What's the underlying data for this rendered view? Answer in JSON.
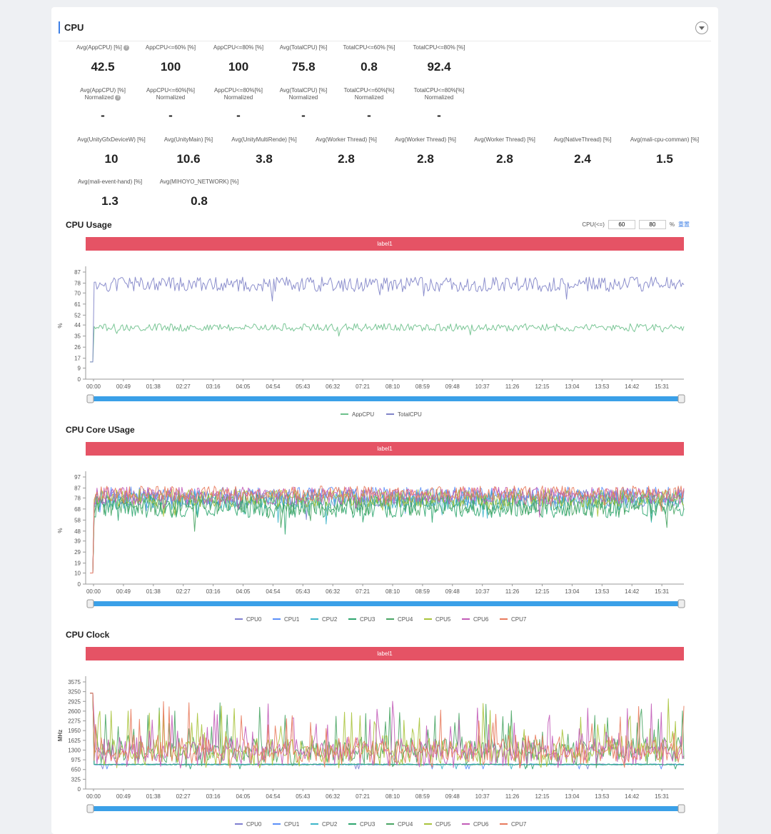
{
  "header": {
    "title": "CPU"
  },
  "stats": {
    "row1": [
      {
        "label": "Avg(AppCPU) [%]",
        "value": "42.5",
        "info": true
      },
      {
        "label": "AppCPU<=60% [%]",
        "value": "100"
      },
      {
        "label": "AppCPU<=80% [%]",
        "value": "100"
      },
      {
        "label": "Avg(TotalCPU) [%]",
        "value": "75.8"
      },
      {
        "label": "TotalCPU<=60% [%]",
        "value": "0.8"
      },
      {
        "label": "TotalCPU<=80% [%]",
        "value": "92.4"
      }
    ],
    "row2": [
      {
        "label": "Avg(AppCPU) [%]",
        "label2": "Normalized",
        "value": "-",
        "info": true
      },
      {
        "label": "AppCPU<=60%[%]",
        "label2": "Normalized",
        "value": "-"
      },
      {
        "label": "AppCPU<=80%[%]",
        "label2": "Normalized",
        "value": "-"
      },
      {
        "label": "Avg(TotalCPU) [%]",
        "label2": "Normalized",
        "value": "-"
      },
      {
        "label": "TotalCPU<=60%[%]",
        "label2": "Normalized",
        "value": "-"
      },
      {
        "label": "TotalCPU<=80%[%]",
        "label2": "Normalized",
        "value": "-"
      }
    ],
    "row3": [
      {
        "label": "Avg(UnityGfxDeviceW) [%]",
        "value": "10"
      },
      {
        "label": "Avg(UnityMain) [%]",
        "value": "10.6"
      },
      {
        "label": "Avg(UnityMultiRende) [%]",
        "value": "3.8"
      },
      {
        "label": "Avg(Worker Thread) [%]",
        "value": "2.8"
      },
      {
        "label": "Avg(Worker Thread) [%]",
        "value": "2.8"
      },
      {
        "label": "Avg(Worker Thread) [%]",
        "value": "2.8"
      },
      {
        "label": "Avg(NativeThread) [%]",
        "value": "2.4"
      },
      {
        "label": "Avg(mali-cpu-comman) [%]",
        "value": "1.5"
      }
    ],
    "row4": [
      {
        "label": "Avg(mali-event-hand) [%]",
        "value": "1.3"
      },
      {
        "label": "Avg(MIHOYO_NETWORK) [%]",
        "value": "0.8"
      }
    ]
  },
  "threshold": {
    "label": "CPU(<=)",
    "low": "60",
    "high": "80",
    "unit": "%",
    "reset": "重置"
  },
  "colors": {
    "label_bar": "#e55365",
    "slider": "#3aa0e8",
    "accent": "#3d7fe6",
    "AppCPU": "#6cc08b",
    "TotalCPU": "#8083c8",
    "CPU0": "#7f7fd0",
    "CPU1": "#5b8ff9",
    "CPU2": "#3cb5c9",
    "CPU3": "#2ea66f",
    "CPU4": "#4aa564",
    "CPU5": "#a9c33b",
    "CPU6": "#c25cb8",
    "CPU7": "#e87b5d"
  },
  "chart_data": [
    {
      "type": "line",
      "title": "CPU Usage",
      "band_label": "label1",
      "ylabel": "%",
      "y_ticks": [
        0,
        9,
        17,
        26,
        35,
        44,
        52,
        61,
        70,
        78,
        87
      ],
      "ylim": [
        0,
        87
      ],
      "x_ticks": [
        "00:00",
        "00:49",
        "01:38",
        "02:27",
        "03:16",
        "04:05",
        "04:54",
        "05:43",
        "06:32",
        "07:21",
        "08:10",
        "08:59",
        "09:48",
        "10:37",
        "11:26",
        "12:15",
        "13:04",
        "13:53",
        "14:42",
        "15:31"
      ],
      "legend": [
        "AppCPU",
        "TotalCPU"
      ],
      "legend_position": "bottom",
      "series": [
        {
          "name": "AppCPU",
          "pattern": "steady",
          "start": 14,
          "typical": 42,
          "spread": 3
        },
        {
          "name": "TotalCPU",
          "pattern": "steady",
          "start": 14,
          "typical": 77,
          "spread": 6
        }
      ]
    },
    {
      "type": "line",
      "title": "CPU Core USage",
      "band_label": "label1",
      "ylabel": "%",
      "y_ticks": [
        0,
        10,
        19,
        29,
        39,
        48,
        58,
        68,
        78,
        87,
        97
      ],
      "ylim": [
        0,
        97
      ],
      "x_ticks": [
        "00:00",
        "00:49",
        "01:38",
        "02:27",
        "03:16",
        "04:05",
        "04:54",
        "05:43",
        "06:32",
        "07:21",
        "08:10",
        "08:59",
        "09:48",
        "10:37",
        "11:26",
        "12:15",
        "13:04",
        "13:53",
        "14:42",
        "15:31"
      ],
      "legend": [
        "CPU0",
        "CPU1",
        "CPU2",
        "CPU3",
        "CPU4",
        "CPU5",
        "CPU6",
        "CPU7"
      ],
      "legend_position": "bottom",
      "series": [
        {
          "name": "CPU0",
          "pattern": "steady",
          "start": 10,
          "typical": 78,
          "spread": 8
        },
        {
          "name": "CPU1",
          "pattern": "steady",
          "start": 10,
          "typical": 80,
          "spread": 8
        },
        {
          "name": "CPU2",
          "pattern": "steady",
          "start": 10,
          "typical": 76,
          "spread": 9
        },
        {
          "name": "CPU3",
          "pattern": "steady",
          "start": 10,
          "typical": 70,
          "spread": 10
        },
        {
          "name": "CPU4",
          "pattern": "steady",
          "start": 10,
          "typical": 72,
          "spread": 10
        },
        {
          "name": "CPU5",
          "pattern": "steady",
          "start": 10,
          "typical": 78,
          "spread": 8
        },
        {
          "name": "CPU6",
          "pattern": "steady",
          "start": 10,
          "typical": 80,
          "spread": 8
        },
        {
          "name": "CPU7",
          "pattern": "steady",
          "start": 10,
          "typical": 82,
          "spread": 7
        }
      ]
    },
    {
      "type": "line",
      "title": "CPU Clock",
      "band_label": "label1",
      "ylabel": "MHz",
      "y_ticks": [
        0,
        325,
        650,
        975,
        1300,
        1625,
        1950,
        2275,
        2600,
        2925,
        3250,
        3575
      ],
      "ylim": [
        0,
        3575
      ],
      "x_ticks": [
        "00:00",
        "00:49",
        "01:38",
        "02:27",
        "03:16",
        "04:05",
        "04:54",
        "05:43",
        "06:32",
        "07:21",
        "08:10",
        "08:59",
        "09:48",
        "10:37",
        "11:26",
        "12:15",
        "13:04",
        "13:53",
        "14:42",
        "15:31"
      ],
      "legend": [
        "CPU0",
        "CPU1",
        "CPU2",
        "CPU3",
        "CPU4",
        "CPU5",
        "CPU6",
        "CPU7"
      ],
      "legend_position": "bottom",
      "series": [
        {
          "name": "CPU0",
          "pattern": "flat",
          "start": 3200,
          "typical": 820,
          "spread": 40
        },
        {
          "name": "CPU1",
          "pattern": "flat",
          "start": 3200,
          "typical": 820,
          "spread": 40
        },
        {
          "name": "CPU2",
          "pattern": "flat",
          "start": 3200,
          "typical": 820,
          "spread": 40
        },
        {
          "name": "CPU3",
          "pattern": "flat",
          "start": 3200,
          "typical": 820,
          "spread": 40
        },
        {
          "name": "CPU4",
          "pattern": "spiky",
          "start": 3200,
          "typical": 1300,
          "spread": 700
        },
        {
          "name": "CPU5",
          "pattern": "spiky",
          "start": 3200,
          "typical": 1400,
          "spread": 750
        },
        {
          "name": "CPU6",
          "pattern": "spiky",
          "start": 3200,
          "typical": 1300,
          "spread": 700
        },
        {
          "name": "CPU7",
          "pattern": "spiky",
          "start": 3200,
          "typical": 1400,
          "spread": 750
        }
      ]
    }
  ]
}
